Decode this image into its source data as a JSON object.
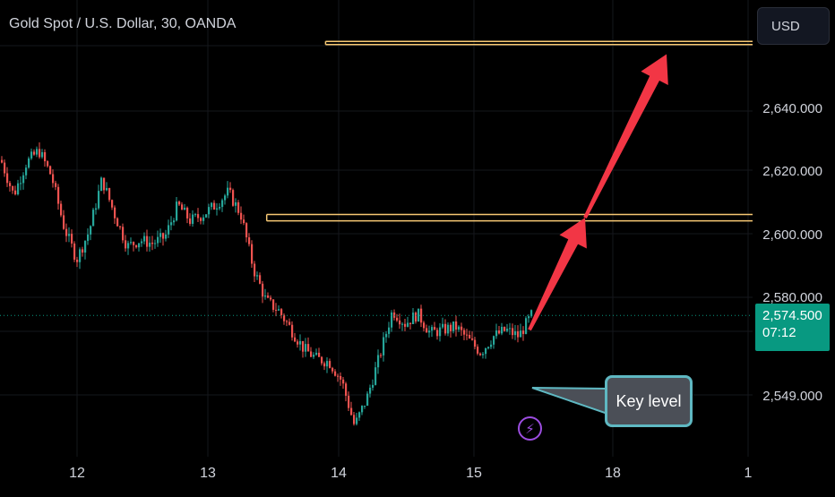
{
  "header": {
    "title": "Gold Spot / U.S. Dollar, 30, OANDA"
  },
  "toolbar": {
    "currency_label": "USD"
  },
  "price_tag": {
    "price": "2,574.500",
    "countdown": "07:12"
  },
  "annotations": {
    "callout_text": "Key level",
    "alert_icon": "lightning-bolt-icon"
  },
  "colors": {
    "background": "#000000",
    "candle_up": "#26a69a",
    "candle_down": "#ef5350",
    "level_line": "#f7c873",
    "arrow": "#f23645",
    "price_tag": "#089981",
    "callout_border": "#5fb8c2",
    "alert_icon": "#9c4de0"
  },
  "chart_data": {
    "type": "candlestick",
    "title": "Gold Spot / U.S. Dollar, 30, OANDA",
    "x_tick_labels": [
      "12",
      "13",
      "14",
      "15",
      "18",
      "1"
    ],
    "y_tick_labels": [
      "2,549.000",
      "2,580.000",
      "2,600.000",
      "2,620.000",
      "2,640.000"
    ],
    "current_price": 2574.5,
    "grid": true,
    "price_path": [
      [
        "11",
        2623
      ],
      [
        "11",
        2612
      ],
      [
        "11",
        2622
      ],
      [
        "11",
        2626
      ],
      [
        "12",
        2618
      ],
      [
        "12",
        2602
      ],
      [
        "12",
        2592
      ],
      [
        "12",
        2601
      ],
      [
        "12",
        2617
      ],
      [
        "12",
        2606
      ],
      [
        "12",
        2596
      ],
      [
        "12",
        2598
      ],
      [
        "12",
        2597
      ],
      [
        "12",
        2599
      ],
      [
        "13",
        2609
      ],
      [
        "13",
        2604
      ],
      [
        "13",
        2606
      ],
      [
        "13",
        2609
      ],
      [
        "13",
        2613
      ],
      [
        "13",
        2606
      ],
      [
        "13",
        2589
      ],
      [
        "13",
        2579
      ],
      [
        "13",
        2576
      ],
      [
        "13",
        2570
      ],
      [
        "14",
        2564
      ],
      [
        "14",
        2561
      ],
      [
        "14",
        2560
      ],
      [
        "14",
        2554
      ],
      [
        "14",
        2540
      ],
      [
        "14",
        2549
      ],
      [
        "14",
        2562
      ],
      [
        "14",
        2576
      ],
      [
        "14",
        2572
      ],
      [
        "14",
        2575
      ],
      [
        "14",
        2569
      ],
      [
        "15",
        2570
      ],
      [
        "15",
        2571
      ],
      [
        "15",
        2567
      ],
      [
        "15",
        2563
      ],
      [
        "15",
        2568
      ],
      [
        "15",
        2570
      ],
      [
        "15",
        2568
      ],
      [
        "15",
        2574.5
      ]
    ],
    "horizontal_levels": [
      {
        "y_top": 2660,
        "y_bottom": 2659,
        "from_x": "13.9"
      },
      {
        "y_top": 2606,
        "y_bottom": 2604,
        "from_x": "13.45"
      }
    ],
    "projection_arrows": [
      {
        "from": [
          "15.4",
          2570
        ],
        "to": [
          "15.8",
          2605
        ]
      },
      {
        "from": [
          "15.8",
          2605
        ],
        "to": [
          "18.4",
          2656
        ]
      }
    ]
  }
}
